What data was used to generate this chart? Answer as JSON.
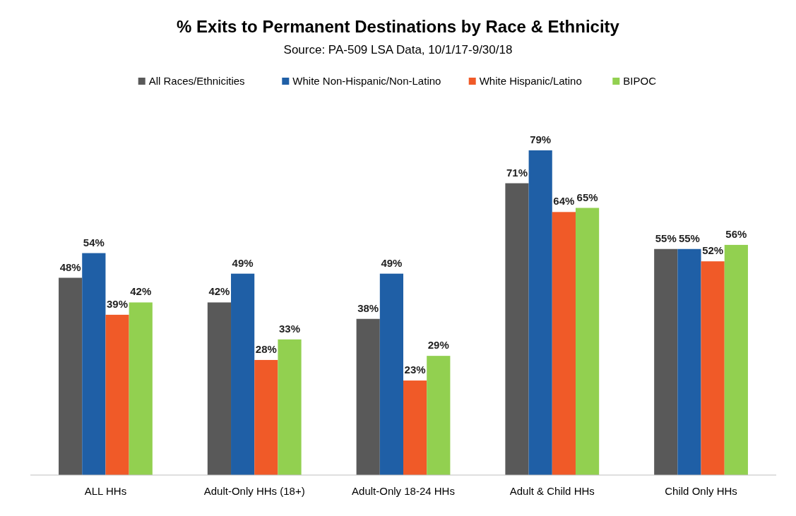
{
  "chart_data": {
    "type": "bar",
    "title": "% Exits to Permanent Destinations by Race & Ethnicity",
    "subtitle": "Source: PA-509 LSA Data, 10/1/17-9/30/18",
    "categories": [
      "ALL HHs",
      "Adult-Only HHs (18+)",
      "Adult-Only 18-24 HHs",
      "Adult & Child HHs",
      "Child Only HHs"
    ],
    "series": [
      {
        "name": "All Races/Ethnicities",
        "color": "#595959",
        "values": [
          48,
          42,
          38,
          71,
          55
        ],
        "value_labels": [
          "48%",
          "42%",
          "38%",
          "71%",
          "55%"
        ]
      },
      {
        "name": "White Non-Hispanic/Non-Latino",
        "color": "#1f5fa6",
        "values": [
          54,
          49,
          49,
          79,
          55
        ],
        "value_labels": [
          "54%",
          "49%",
          "49%",
          "79%",
          "55%"
        ]
      },
      {
        "name": "White Hispanic/Latino",
        "color": "#f05a28",
        "values": [
          39,
          28,
          23,
          64,
          52
        ],
        "value_labels": [
          "39%",
          "28%",
          "23%",
          "64%",
          "52%"
        ]
      },
      {
        "name": "BIPOC",
        "color": "#92d050",
        "values": [
          42,
          33,
          29,
          65,
          56
        ],
        "value_labels": [
          "42%",
          "33%",
          "29%",
          "65%",
          "56%"
        ]
      }
    ],
    "tick_labels": "x",
    "legend": "top",
    "grid": false
  }
}
